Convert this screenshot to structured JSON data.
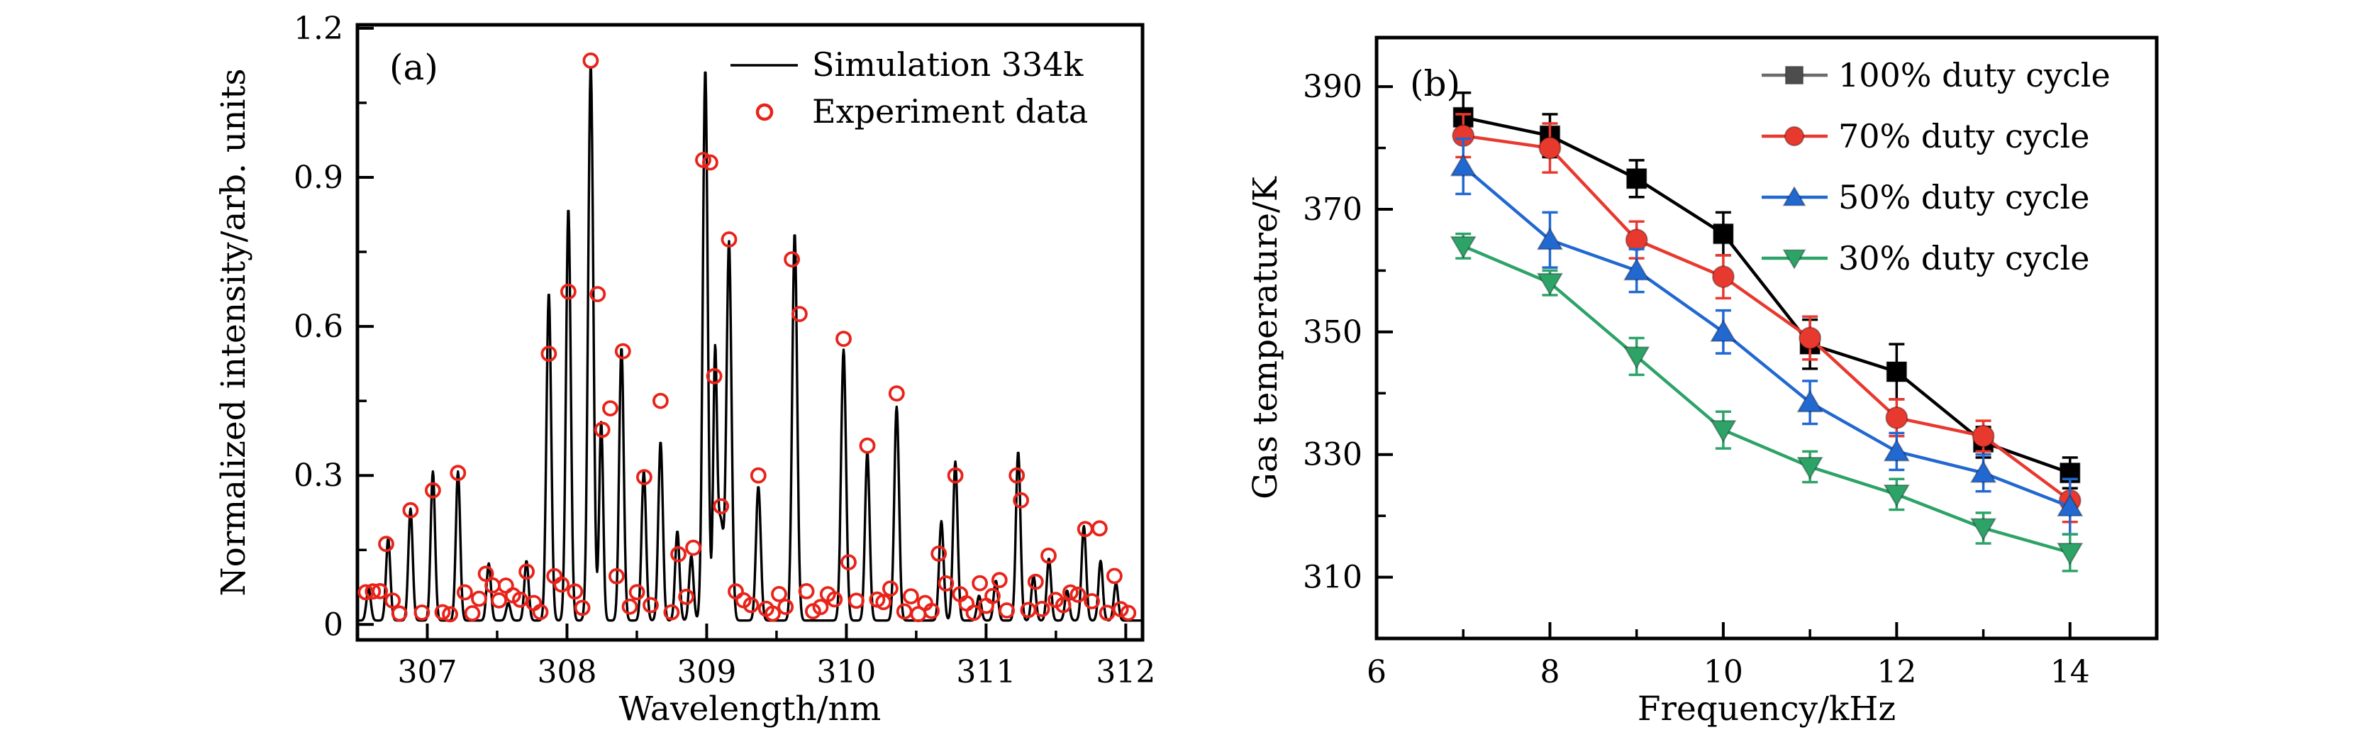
{
  "figure": {
    "background": "#ffffff",
    "description": "Two-panel scientific figure: (a) OH emission spectrum simulation vs experiment, (b) gas temperature vs frequency for four duty cycles"
  },
  "chart_data": [
    {
      "type": "line",
      "panel_label": "(a)",
      "xlabel": "Wavelength/nm",
      "ylabel": "Normalized intensity/arb. units",
      "xlim": [
        306.5,
        312.12
      ],
      "ylim": [
        -0.031,
        1.207
      ],
      "x_major_ticks": [
        307,
        308,
        309,
        310,
        311,
        312
      ],
      "x_tick_labels": [
        "307",
        "308",
        "309",
        "310",
        "311",
        "312"
      ],
      "x_minor_ticks": [
        307.5,
        308.5,
        309.5,
        310.5,
        311.5
      ],
      "y_major_ticks": [
        0,
        0.3,
        0.6,
        0.9,
        1.2
      ],
      "y_tick_labels": [
        "0",
        "0.3",
        "0.6",
        "0.9",
        "1.2"
      ],
      "y_minor_ticks": [
        0.15,
        0.45,
        0.75,
        1.05
      ],
      "legend": [
        {
          "label": "Simulation 334k",
          "type": "line",
          "color": "#000000"
        },
        {
          "label": "Experiment data",
          "type": "open-circle",
          "color": "#e8231a"
        }
      ],
      "line_color": "#000000",
      "experiment_color": "#e8231a",
      "baseline": 0.008,
      "peaks_nm_height_sigma": [
        [
          306.58,
          0.065,
          0.022
        ],
        [
          306.72,
          0.165,
          0.022
        ],
        [
          306.88,
          0.225,
          0.022
        ],
        [
          307.04,
          0.3,
          0.022
        ],
        [
          307.22,
          0.3,
          0.022
        ],
        [
          307.44,
          0.115,
          0.022
        ],
        [
          307.58,
          0.035,
          0.022
        ],
        [
          307.71,
          0.12,
          0.022
        ],
        [
          307.87,
          0.66,
          0.024
        ],
        [
          308.01,
          0.83,
          0.024
        ],
        [
          308.17,
          1.12,
          0.026
        ],
        [
          308.245,
          0.4,
          0.02
        ],
        [
          308.39,
          0.55,
          0.023
        ],
        [
          308.55,
          0.3,
          0.023
        ],
        [
          308.67,
          0.36,
          0.023
        ],
        [
          308.79,
          0.18,
          0.022
        ],
        [
          308.89,
          0.13,
          0.022
        ],
        [
          308.99,
          1.11,
          0.025
        ],
        [
          309.06,
          0.52,
          0.019
        ],
        [
          309.1,
          0.2,
          0.03
        ],
        [
          309.16,
          0.76,
          0.025
        ],
        [
          309.37,
          0.27,
          0.024
        ],
        [
          309.63,
          0.78,
          0.025
        ],
        [
          309.98,
          0.545,
          0.025
        ],
        [
          310.15,
          0.34,
          0.023
        ],
        [
          310.36,
          0.43,
          0.024
        ],
        [
          310.68,
          0.2,
          0.023
        ],
        [
          310.78,
          0.32,
          0.023
        ],
        [
          310.95,
          0.05,
          0.022
        ],
        [
          311.07,
          0.08,
          0.022
        ],
        [
          311.23,
          0.34,
          0.023
        ],
        [
          311.34,
          0.09,
          0.022
        ],
        [
          311.45,
          0.125,
          0.022
        ],
        [
          311.58,
          0.06,
          0.022
        ],
        [
          311.7,
          0.19,
          0.023
        ],
        [
          311.82,
          0.12,
          0.022
        ],
        [
          311.93,
          0.075,
          0.022
        ]
      ],
      "experiment_highlights": [
        [
          308.17,
          1.135
        ],
        [
          308.975,
          0.935
        ],
        [
          309.025,
          0.93
        ],
        [
          309.16,
          0.775
        ],
        [
          309.61,
          0.735
        ],
        [
          309.665,
          0.625
        ],
        [
          309.98,
          0.575
        ],
        [
          310.36,
          0.465
        ],
        [
          310.15,
          0.36
        ],
        [
          308.67,
          0.45
        ],
        [
          307.87,
          0.545
        ],
        [
          308.01,
          0.67
        ],
        [
          308.22,
          0.665
        ],
        [
          308.4,
          0.55
        ],
        [
          310.78,
          0.3
        ],
        [
          311.22,
          0.3
        ],
        [
          311.25,
          0.25
        ],
        [
          307.04,
          0.27
        ],
        [
          307.22,
          0.305
        ],
        [
          306.88,
          0.23
        ],
        [
          309.37,
          0.3
        ],
        [
          308.31,
          0.435
        ]
      ]
    },
    {
      "type": "line",
      "panel_label": "(b)",
      "xlabel": "Frequency/kHz",
      "ylabel": "Gas temperature/K",
      "xlim": [
        6,
        15
      ],
      "ylim": [
        300,
        398
      ],
      "x_major_ticks": [
        6,
        8,
        10,
        12,
        14
      ],
      "x_tick_labels": [
        "6",
        "8",
        "10",
        "12",
        "14"
      ],
      "x_minor_ticks": [
        7,
        9,
        11,
        13,
        15
      ],
      "y_major_ticks": [
        310,
        330,
        350,
        370,
        390
      ],
      "y_tick_labels": [
        "310",
        "330",
        "350",
        "370",
        "390"
      ],
      "y_minor_ticks": [
        320,
        340,
        360,
        380
      ],
      "x": [
        7,
        8,
        9,
        10,
        11,
        12,
        13,
        14
      ],
      "series": [
        {
          "name": "100% duty cycle",
          "marker": "square",
          "color": "#000000",
          "legend_line_color": "#6b6b6b",
          "legend_marker_color": "#4d4d4d",
          "values": [
            385,
            382,
            375,
            366,
            348,
            343.5,
            332,
            327
          ],
          "errors": [
            4,
            3.5,
            3,
            3.5,
            4,
            4.5,
            2.5,
            2.5
          ]
        },
        {
          "name": "70% duty cycle",
          "marker": "circle",
          "color": "#e8392f",
          "legend_line_color": "#e8392f",
          "legend_marker_color": "#e8392f",
          "values": [
            382,
            380,
            365,
            359,
            349,
            336,
            333,
            322.5
          ],
          "errors": [
            3.5,
            4,
            3,
            3.5,
            3.5,
            3,
            2.5,
            3.5
          ]
        },
        {
          "name": "50% duty cycle",
          "marker": "triangle-up",
          "color": "#2268d1",
          "legend_line_color": "#2268d1",
          "legend_marker_color": "#2268d1",
          "values": [
            377,
            365,
            360,
            350,
            338.5,
            330.5,
            327,
            321.5
          ],
          "errors": [
            4.5,
            4.5,
            3.5,
            3.5,
            3.5,
            3,
            3,
            4.5
          ]
        },
        {
          "name": "30% duty cycle",
          "marker": "triangle-down",
          "color": "#2da368",
          "legend_line_color": "#2da368",
          "legend_marker_color": "#2da368",
          "values": [
            364,
            358,
            346,
            334,
            328,
            323.5,
            318,
            314
          ],
          "errors": [
            2,
            2,
            3,
            3,
            2.5,
            2.5,
            2.5,
            3
          ]
        }
      ],
      "legend_position": "top-right"
    }
  ]
}
